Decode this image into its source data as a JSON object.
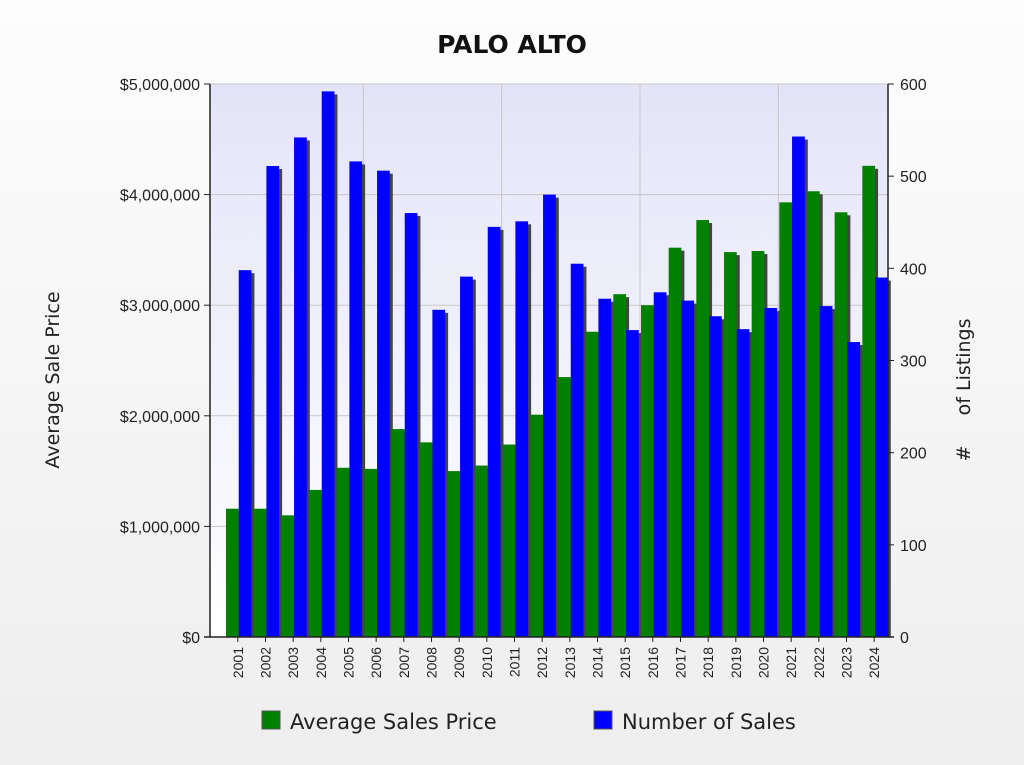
{
  "chart_data": {
    "type": "bar",
    "title": "PALO ALTO",
    "categories": [
      "2001",
      "2002",
      "2003",
      "2004",
      "2005",
      "2006",
      "2007",
      "2008",
      "2009",
      "2010",
      "2011",
      "2012",
      "2013",
      "2014",
      "2015",
      "2016",
      "2017",
      "2018",
      "2019",
      "2020",
      "2021",
      "2022",
      "2023",
      "2024"
    ],
    "series": [
      {
        "name": "Average Sales Price",
        "axis": "left",
        "color": "#008000",
        "values": [
          1160000,
          1160000,
          1100000,
          1330000,
          1530000,
          1520000,
          1880000,
          1760000,
          1500000,
          1550000,
          1740000,
          2010000,
          2350000,
          2760000,
          3100000,
          3000000,
          3520000,
          3770000,
          3480000,
          3490000,
          3930000,
          4030000,
          3840000,
          4260000
        ]
      },
      {
        "name": "Number of Sales",
        "axis": "right",
        "color": "#0000ff",
        "values": [
          398,
          511,
          542,
          592,
          516,
          506,
          460,
          355,
          391,
          445,
          451,
          480,
          405,
          367,
          333,
          374,
          365,
          348,
          334,
          357,
          543,
          359,
          320,
          390
        ]
      }
    ],
    "ylabel": "Average Sale Price",
    "ylim": [
      0,
      5000000
    ],
    "yticks": [
      "$0",
      "$1,000,000",
      "$2,000,000",
      "$3,000,000",
      "$4,000,000",
      "$5,000,000"
    ],
    "y2label": "#     of Listings",
    "y2lim": [
      0,
      600
    ],
    "y2ticks": [
      "0",
      "100",
      "200",
      "300",
      "400",
      "500",
      "600"
    ],
    "grid": true,
    "legend": "bottom"
  }
}
